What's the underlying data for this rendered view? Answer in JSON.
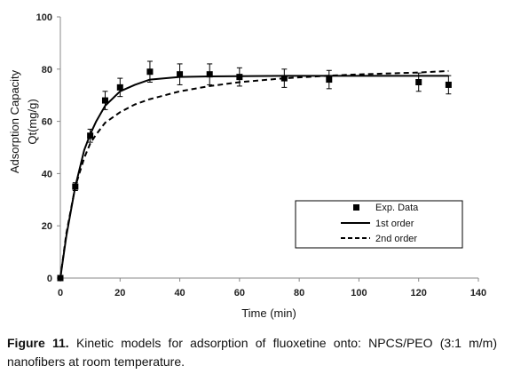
{
  "caption": {
    "label": "Figure 11.",
    "text": "Kinetic models for adsorption of fluoxetine onto: NPCS/PEO (3:1 m/m) nanofibers at room temperature."
  },
  "chart_data": {
    "type": "scatter",
    "xlabel": "Time (min)",
    "ylabel_line1": "Adsorption Capacity",
    "ylabel_line2": "Qt(mg/g)",
    "xlim": [
      0,
      140
    ],
    "ylim": [
      0,
      100
    ],
    "x_ticks": [
      "0",
      "20",
      "40",
      "60",
      "80",
      "100",
      "120",
      "140"
    ],
    "y_ticks": [
      "0",
      "20",
      "40",
      "60",
      "80",
      "100"
    ],
    "grid": false,
    "legend_position": "lower-right",
    "series": [
      {
        "name": "Exp. Data",
        "style": "square-markers-with-error-bars",
        "x": [
          0,
          5,
          10,
          15,
          20,
          30,
          40,
          50,
          60,
          75,
          90,
          120,
          130
        ],
        "y": [
          0,
          35,
          54.5,
          68,
          73,
          79,
          78,
          78,
          77,
          76.5,
          76,
          75,
          74
        ],
        "error": [
          0,
          1.5,
          2.5,
          3.5,
          3.5,
          4,
          4,
          4,
          3.5,
          3.5,
          3.5,
          3.5,
          3.5
        ]
      },
      {
        "name": "1st order",
        "style": "solid-line",
        "x": [
          0,
          2,
          5,
          8,
          10,
          12,
          15,
          20,
          25,
          30,
          40,
          50,
          60,
          75,
          90,
          120,
          130
        ],
        "y": [
          0,
          16,
          35,
          49,
          55,
          60,
          66,
          71.5,
          74,
          76,
          77,
          77.2,
          77.3,
          77.4,
          77.4,
          77.4,
          77.4
        ]
      },
      {
        "name": "2nd order",
        "style": "dashed-line",
        "x": [
          0,
          2,
          5,
          8,
          10,
          12,
          15,
          20,
          25,
          30,
          40,
          50,
          60,
          75,
          90,
          100,
          120,
          130
        ],
        "y": [
          0,
          17,
          35,
          46,
          51.5,
          55,
          59.5,
          63.5,
          66.5,
          68.5,
          71.5,
          73.5,
          75,
          76.5,
          77.5,
          78,
          78.7,
          79.3
        ]
      }
    ]
  }
}
